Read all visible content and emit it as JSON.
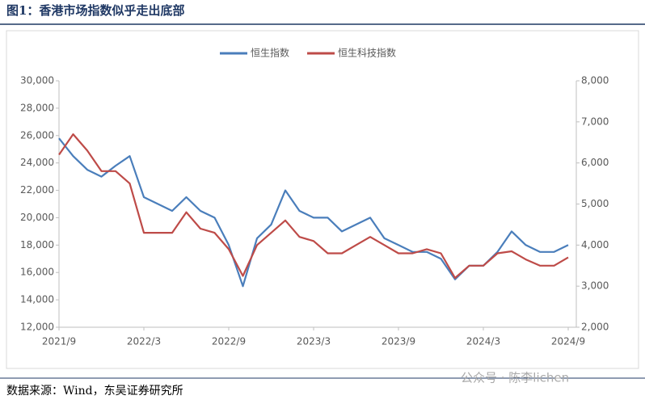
{
  "title": "图1：香港市场指数似乎走出底部",
  "source": "数据来源：Wind，东吴证券研究所",
  "watermark": "公众号 · 陈李lichen",
  "chart_data": {
    "type": "line",
    "x": [
      "2021/9",
      "2021/10",
      "2021/11",
      "2021/12",
      "2022/1",
      "2022/2",
      "2022/3",
      "2022/4",
      "2022/5",
      "2022/6",
      "2022/7",
      "2022/8",
      "2022/9",
      "2022/10",
      "2022/11",
      "2022/12",
      "2023/1",
      "2023/2",
      "2023/3",
      "2023/4",
      "2023/5",
      "2023/6",
      "2023/7",
      "2023/8",
      "2023/9",
      "2023/10",
      "2023/11",
      "2023/12",
      "2024/1",
      "2024/2",
      "2024/3",
      "2024/4",
      "2024/5",
      "2024/6",
      "2024/7",
      "2024/8",
      "2024/9"
    ],
    "xticks": [
      "2021/9",
      "2022/3",
      "2022/9",
      "2023/3",
      "2023/9",
      "2024/3",
      "2024/9"
    ],
    "series": [
      {
        "name": "恒生指数",
        "color": "#4a7ebb",
        "values": [
          25800,
          24500,
          23500,
          23000,
          23800,
          24500,
          21500,
          21000,
          20500,
          21500,
          20500,
          20000,
          18000,
          15000,
          18500,
          19500,
          22000,
          20500,
          20000,
          20000,
          19000,
          19500,
          20000,
          18500,
          18000,
          17500,
          17500,
          17000,
          15500,
          16500,
          16500,
          17500,
          19000,
          18000,
          17500,
          17500,
          18000
        ]
      },
      {
        "name": "恒生科技指数",
        "color": "#be4b48",
        "axis": "y2",
        "values": [
          6200,
          6700,
          6300,
          5800,
          5800,
          5500,
          4300,
          4300,
          4300,
          4800,
          4400,
          4300,
          3900,
          3250,
          4000,
          4300,
          4600,
          4200,
          4100,
          3800,
          3800,
          4000,
          4200,
          4000,
          3800,
          3800,
          3900,
          3800,
          3200,
          3500,
          3500,
          3800,
          3850,
          3650,
          3500,
          3500,
          3700
        ]
      }
    ],
    "ylim": [
      12000,
      30000
    ],
    "yticks": [
      {
        "value": 12000,
        "label": "12,000"
      },
      {
        "value": 14000,
        "label": "14,000"
      },
      {
        "value": 16000,
        "label": "16,000"
      },
      {
        "value": 18000,
        "label": "18,000"
      },
      {
        "value": 20000,
        "label": "20,000"
      },
      {
        "value": 22000,
        "label": "22,000"
      },
      {
        "value": 24000,
        "label": "24,000"
      },
      {
        "value": 26000,
        "label": "26,000"
      },
      {
        "value": 28000,
        "label": "28,000"
      },
      {
        "value": 30000,
        "label": "30,000"
      }
    ],
    "y2lim": [
      2000,
      8000
    ],
    "y2ticks": [
      {
        "value": 2000,
        "label": "2,000"
      },
      {
        "value": 3000,
        "label": "3,000"
      },
      {
        "value": 4000,
        "label": "4,000"
      },
      {
        "value": 5000,
        "label": "5,000"
      },
      {
        "value": 6000,
        "label": "6,000"
      },
      {
        "value": 7000,
        "label": "7,000"
      },
      {
        "value": 8000,
        "label": "8,000"
      }
    ],
    "legend": "top"
  }
}
